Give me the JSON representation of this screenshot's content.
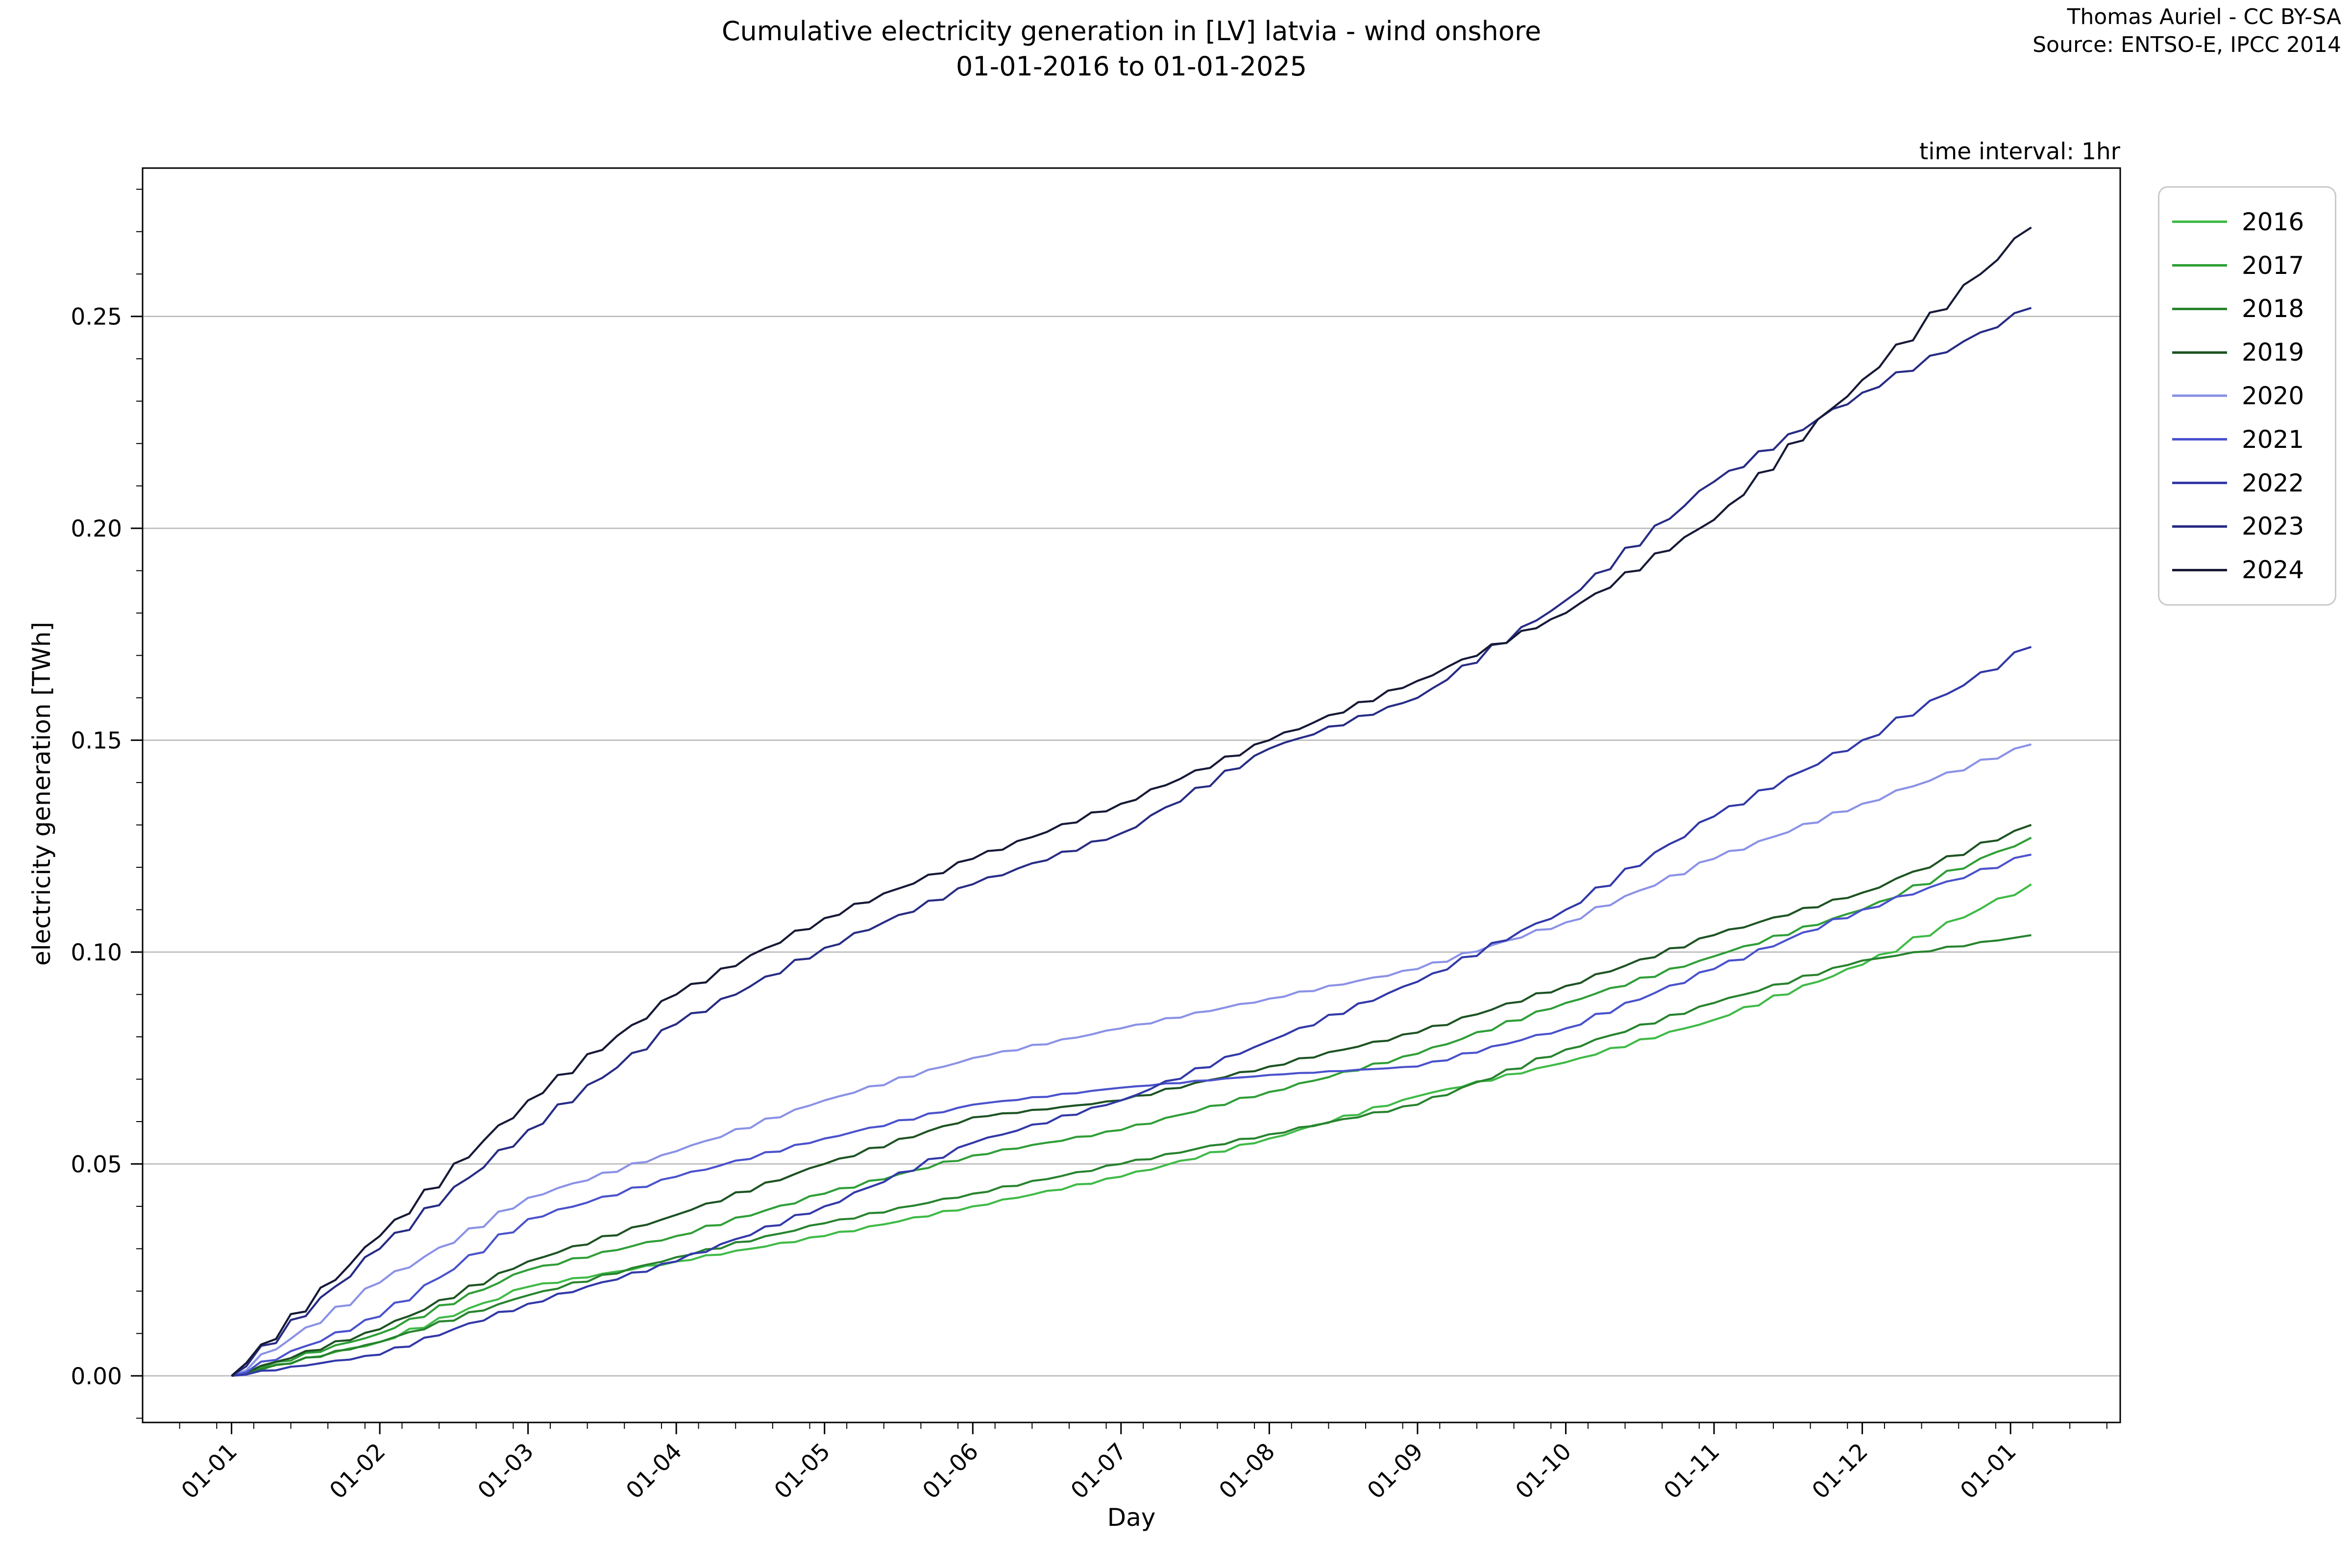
{
  "header": {
    "attribution_line1": "Thomas Auriel - CC BY-SA",
    "attribution_line2": "Source: ENTSO-E, IPCC 2014"
  },
  "chart_data": {
    "type": "line",
    "title": "Cumulative electricity generation in [LV] latvia - wind onshore",
    "subtitle": "01-01-2016 to 01-01-2025",
    "annotation": "time interval: 1hr",
    "xlabel": "Day",
    "ylabel": "electricity generation [TWh]",
    "x_tick_labels": [
      "01-01",
      "01-02",
      "01-03",
      "01-04",
      "01-05",
      "01-06",
      "01-07",
      "01-08",
      "01-09",
      "01-10",
      "01-11",
      "01-12",
      "01-01"
    ],
    "y_ticks": [
      0.0,
      0.05,
      0.1,
      0.15,
      0.2,
      0.25
    ],
    "ylim": [
      -0.011,
      0.285
    ],
    "grid": "horizontal-major",
    "legend_position": "outside-upper-right",
    "axis_color": "#000000",
    "gridline_color": "#b6b6b6",
    "series": [
      {
        "name": "2016",
        "color": "#3fba47",
        "values": [
          0,
          0.008,
          0.021,
          0.027,
          0.033,
          0.04,
          0.047,
          0.056,
          0.066,
          0.074,
          0.084,
          0.097,
          0.116
        ]
      },
      {
        "name": "2017",
        "color": "#2f9e37",
        "values": [
          0,
          0.01,
          0.025,
          0.033,
          0.043,
          0.052,
          0.058,
          0.067,
          0.076,
          0.088,
          0.099,
          0.11,
          0.127
        ]
      },
      {
        "name": "2018",
        "color": "#27832e",
        "values": [
          0,
          0.008,
          0.019,
          0.028,
          0.036,
          0.043,
          0.05,
          0.057,
          0.064,
          0.077,
          0.088,
          0.098,
          0.104
        ]
      },
      {
        "name": "2019",
        "color": "#1d5323",
        "values": [
          0,
          0.011,
          0.027,
          0.038,
          0.05,
          0.061,
          0.065,
          0.073,
          0.081,
          0.092,
          0.104,
          0.114,
          0.13
        ]
      },
      {
        "name": "2020",
        "color": "#8a92e6",
        "values": [
          0,
          0.022,
          0.042,
          0.053,
          0.065,
          0.075,
          0.082,
          0.089,
          0.096,
          0.107,
          0.122,
          0.135,
          0.149
        ]
      },
      {
        "name": "2021",
        "color": "#4a52cc",
        "values": [
          0,
          0.014,
          0.037,
          0.047,
          0.056,
          0.064,
          0.068,
          0.071,
          0.073,
          0.082,
          0.096,
          0.11,
          0.123
        ]
      },
      {
        "name": "2022",
        "color": "#3239a8",
        "values": [
          0,
          0.005,
          0.017,
          0.027,
          0.04,
          0.055,
          0.065,
          0.079,
          0.093,
          0.11,
          0.132,
          0.15,
          0.172
        ]
      },
      {
        "name": "2023",
        "color": "#272c85",
        "values": [
          0,
          0.03,
          0.058,
          0.083,
          0.101,
          0.116,
          0.128,
          0.148,
          0.16,
          0.183,
          0.211,
          0.232,
          0.252
        ]
      },
      {
        "name": "2024",
        "color": "#161936",
        "values": [
          0,
          0.033,
          0.065,
          0.09,
          0.108,
          0.122,
          0.135,
          0.15,
          0.164,
          0.18,
          0.202,
          0.235,
          0.271
        ]
      }
    ]
  }
}
